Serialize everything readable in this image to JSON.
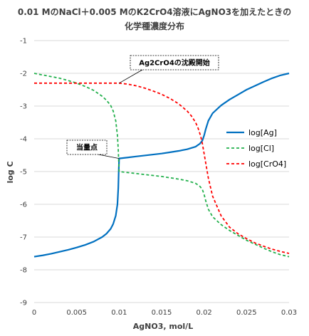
{
  "chart_data": {
    "type": "line",
    "title_line1": "0.01 MのNaCl＋0.005 MのK2CrO4溶液にAgNO3を加えたときの",
    "title_line2": "化学種濃度分布",
    "xlabel": "AgNO3, mol/L",
    "ylabel": "log C",
    "xlim": [
      0,
      0.03
    ],
    "ylim": [
      -9,
      -1
    ],
    "xticks": [
      0,
      0.005,
      0.01,
      0.015,
      0.02,
      0.025,
      0.03
    ],
    "xtick_labels": [
      "0",
      "0.005",
      "0.01",
      "0.015",
      "0.02",
      "0.025",
      "0.03"
    ],
    "yticks": [
      -1,
      -2,
      -3,
      -4,
      -5,
      -6,
      -7,
      -8,
      -9
    ],
    "ytick_labels": [
      "-1",
      "-2",
      "-3",
      "-4",
      "-5",
      "-6",
      "-7",
      "-8",
      "-9"
    ],
    "grid": "horizontal",
    "legend_position": "right",
    "series": [
      {
        "name": "log[Ag]",
        "color": "#0070C0",
        "dash": "solid",
        "x": [
          0,
          0.001,
          0.002,
          0.003,
          0.004,
          0.005,
          0.006,
          0.007,
          0.008,
          0.0085,
          0.009,
          0.0093,
          0.0096,
          0.0098,
          0.0099,
          0.00995,
          0.01,
          0.011,
          0.012,
          0.013,
          0.014,
          0.015,
          0.016,
          0.017,
          0.018,
          0.019,
          0.0195,
          0.0198,
          0.02,
          0.0202,
          0.0205,
          0.021,
          0.022,
          0.023,
          0.024,
          0.025,
          0.026,
          0.027,
          0.028,
          0.029,
          0.03
        ],
        "y": [
          -7.6,
          -7.56,
          -7.51,
          -7.45,
          -7.39,
          -7.32,
          -7.24,
          -7.14,
          -7.0,
          -6.9,
          -6.75,
          -6.6,
          -6.35,
          -6.0,
          -5.5,
          -5.0,
          -4.6,
          -4.57,
          -4.54,
          -4.51,
          -4.48,
          -4.45,
          -4.41,
          -4.37,
          -4.32,
          -4.24,
          -4.15,
          -4.05,
          -3.9,
          -3.7,
          -3.45,
          -3.22,
          -2.98,
          -2.8,
          -2.65,
          -2.5,
          -2.38,
          -2.26,
          -2.15,
          -2.06,
          -2.0
        ]
      },
      {
        "name": "log[Cl]",
        "color": "#22B04C",
        "dash": "dashed",
        "x": [
          0,
          0.001,
          0.002,
          0.003,
          0.004,
          0.005,
          0.006,
          0.007,
          0.008,
          0.0085,
          0.009,
          0.0093,
          0.0096,
          0.0098,
          0.0099,
          0.00995,
          0.01,
          0.011,
          0.012,
          0.013,
          0.014,
          0.015,
          0.016,
          0.017,
          0.018,
          0.019,
          0.0195,
          0.0198,
          0.02,
          0.0202,
          0.0205,
          0.021,
          0.022,
          0.023,
          0.024,
          0.025,
          0.026,
          0.027,
          0.028,
          0.029,
          0.03
        ],
        "y": [
          -2.0,
          -2.05,
          -2.1,
          -2.15,
          -2.22,
          -2.3,
          -2.4,
          -2.52,
          -2.7,
          -2.82,
          -2.98,
          -3.15,
          -3.45,
          -3.9,
          -4.35,
          -4.7,
          -5.0,
          -5.03,
          -5.06,
          -5.09,
          -5.12,
          -5.15,
          -5.19,
          -5.23,
          -5.28,
          -5.36,
          -5.45,
          -5.55,
          -5.7,
          -5.9,
          -6.15,
          -6.38,
          -6.62,
          -6.8,
          -6.95,
          -7.1,
          -7.22,
          -7.34,
          -7.45,
          -7.54,
          -7.6
        ]
      },
      {
        "name": "log[CrO4]",
        "color": "#FF0000",
        "dash": "dashed",
        "x": [
          0,
          0.002,
          0.004,
          0.006,
          0.008,
          0.01,
          0.011,
          0.012,
          0.013,
          0.014,
          0.015,
          0.016,
          0.017,
          0.018,
          0.0185,
          0.019,
          0.0193,
          0.0196,
          0.0198,
          0.02,
          0.0202,
          0.0205,
          0.021,
          0.022,
          0.023,
          0.024,
          0.025,
          0.026,
          0.027,
          0.028,
          0.029,
          0.03
        ],
        "y": [
          -2.3,
          -2.3,
          -2.3,
          -2.3,
          -2.3,
          -2.3,
          -2.33,
          -2.38,
          -2.45,
          -2.54,
          -2.64,
          -2.77,
          -2.93,
          -3.15,
          -3.3,
          -3.5,
          -3.68,
          -3.92,
          -4.15,
          -4.45,
          -4.75,
          -5.2,
          -5.75,
          -6.35,
          -6.7,
          -6.9,
          -7.05,
          -7.18,
          -7.28,
          -7.37,
          -7.44,
          -7.5
        ]
      }
    ],
    "annotations": [
      {
        "text": "Ag2CrO4の沈殿開始",
        "target": [
          0.01,
          -2.3
        ]
      },
      {
        "text": "当量点",
        "target": [
          0.01,
          -4.6
        ]
      }
    ]
  }
}
